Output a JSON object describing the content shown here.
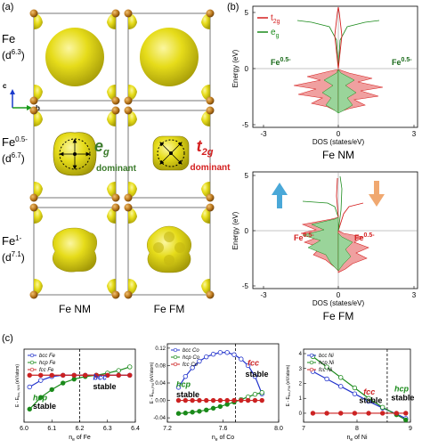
{
  "panel_labels": {
    "a": "(a)",
    "b": "(b)",
    "c": "(c)"
  },
  "panel_a": {
    "row1": {
      "name": "Fe",
      "config": "(d",
      "sup": "6.3",
      "close": ")"
    },
    "row2": {
      "name": "Fe",
      "name_sup": "0.5-",
      "config": "(d",
      "sup": "6.7",
      "close": ")"
    },
    "row3": {
      "name": "Fe",
      "name_sup": "1-",
      "config": "(d",
      "sup": "7.1",
      "close": ")"
    },
    "axis_c": "c",
    "axis_b": "b",
    "eg_label": "e",
    "eg_sub": "g",
    "eg_dominant": "dominant",
    "t2g_label": "t",
    "t2g_sub": "2g",
    "t2g_dominant": "dominant",
    "col1": "Fe NM",
    "col2": "Fe FM",
    "colors": {
      "iso": "#e6dc1a",
      "atom": "#b8751a",
      "eg": "#3a8a2a",
      "t2g": "#d42020"
    }
  },
  "panel_b": {
    "legend_t2g": "t",
    "legend_t2g_sub": "2g",
    "legend_eg": "e",
    "legend_eg_sub": "g",
    "nm": {
      "ylabel": "Energy (eV)",
      "yticks": [
        "5",
        "0",
        "-5"
      ],
      "xticks": [
        "-3",
        "0",
        "3"
      ],
      "xlabel": "DOS (states/eV)",
      "caption": "Fe NM",
      "left_label": "Fe",
      "left_label_sup": "0.5-",
      "right_label": "Fe",
      "right_label_sup": "0.5-"
    },
    "fm": {
      "ylabel": "Energy (eV)",
      "yticks": [
        "5",
        "0",
        "-5"
      ],
      "xticks": [
        "-3",
        "0",
        "3"
      ],
      "xlabel": "DOS (states/eV)",
      "caption": "Fe FM",
      "left_label": "Fe",
      "left_label_sup": "0.5-",
      "right_label": "Fe",
      "right_label_sup": "0.5-",
      "up_arrow_color": "#4aa8d8",
      "down_arrow_color": "#f0a870"
    }
  },
  "chart_data": [
    {
      "type": "line",
      "xlabel": "n",
      "xlabel_sub": "e",
      "xlabel_tail": " of Fe",
      "ylabel": "E - E",
      "ylabel_sub": "fcc, NM",
      "ylabel_tail": " (eV/atom)",
      "xlim": [
        6.0,
        6.4
      ],
      "ylim": [
        -0.18,
        0.1
      ],
      "xticks": [
        "6.0",
        "6.1",
        "6.2",
        "6.3",
        "6.4"
      ],
      "divider_x": 6.2,
      "series": [
        {
          "name": "bcc Fe",
          "color": "#2233cc",
          "x": [
            6.02,
            6.06,
            6.1,
            6.14,
            6.18,
            6.22,
            6.26,
            6.3,
            6.34,
            6.38
          ],
          "values": [
            -0.045,
            -0.02,
            -0.005,
            0.0,
            0.0,
            0.0,
            0.0,
            0.0,
            0.0,
            0.0
          ]
        },
        {
          "name": "hcp Fe",
          "color": "#1a8a1a",
          "x": [
            6.02,
            6.06,
            6.1,
            6.14,
            6.18,
            6.22,
            6.26,
            6.3,
            6.34,
            6.38
          ],
          "values": [
            -0.13,
            -0.085,
            -0.055,
            -0.03,
            -0.015,
            -0.005,
            0.0,
            0.008,
            0.018,
            0.032
          ]
        },
        {
          "name": "fcc Fe",
          "color": "#cc2222",
          "x": [
            6.02,
            6.06,
            6.1,
            6.14,
            6.18,
            6.22,
            6.26,
            6.3,
            6.34,
            6.38
          ],
          "values": [
            0,
            0,
            0,
            0,
            0,
            0,
            0,
            0,
            0,
            0
          ]
        }
      ],
      "annotations": [
        {
          "text": "hcp",
          "color": "#1a8a1a"
        },
        {
          "text": "stable",
          "color": "#000000"
        },
        {
          "text": "bcc",
          "color": "#2233cc"
        },
        {
          "text": "stable",
          "color": "#000000"
        }
      ]
    },
    {
      "type": "line",
      "xlabel": "n",
      "xlabel_sub": "e",
      "xlabel_tail": " of Co",
      "ylabel": "E - E",
      "ylabel_sub": "fcc,FM",
      "ylabel_tail": " (eV/atom)",
      "xlim": [
        7.2,
        8.0
      ],
      "ylim": [
        -0.05,
        0.13
      ],
      "xticks": [
        "7.2",
        "7.6",
        "8.0"
      ],
      "yticks": [
        "0.12",
        "0.08",
        "0.04",
        "0.00",
        "-0.04"
      ],
      "divider_x": 7.69,
      "series": [
        {
          "name": "bcc Co",
          "color": "#2233cc",
          "x": [
            7.28,
            7.33,
            7.38,
            7.43,
            7.48,
            7.53,
            7.58,
            7.63,
            7.68,
            7.73,
            7.78,
            7.83,
            7.88
          ],
          "values": [
            0.03,
            0.055,
            0.075,
            0.09,
            0.1,
            0.106,
            0.11,
            0.11,
            0.105,
            0.095,
            0.08,
            0.055,
            0.015
          ]
        },
        {
          "name": "hcp Co",
          "color": "#1a8a1a",
          "x": [
            7.28,
            7.33,
            7.38,
            7.43,
            7.48,
            7.53,
            7.58,
            7.63,
            7.68,
            7.73,
            7.78,
            7.83,
            7.88
          ],
          "values": [
            -0.03,
            -0.029,
            -0.027,
            -0.025,
            -0.022,
            -0.018,
            -0.014,
            -0.009,
            -0.004,
            0.002,
            0.008,
            0.014,
            0.018
          ]
        },
        {
          "name": "fcc Co",
          "color": "#cc2222",
          "x": [
            7.28,
            7.33,
            7.38,
            7.43,
            7.48,
            7.53,
            7.58,
            7.63,
            7.68,
            7.73,
            7.78,
            7.83,
            7.88
          ],
          "values": [
            0,
            0,
            0,
            0,
            0,
            0,
            0,
            0,
            0,
            0,
            0,
            0,
            0
          ]
        }
      ],
      "annotations": [
        {
          "text": "hcp",
          "color": "#1a8a1a"
        },
        {
          "text": "stable",
          "color": "#000000"
        },
        {
          "text": "fcc",
          "color": "#cc2222"
        },
        {
          "text": "stable",
          "color": "#000000"
        }
      ]
    },
    {
      "type": "line",
      "xlabel": "n",
      "xlabel_sub": "e",
      "xlabel_tail": " of Ni",
      "ylabel": "E - E",
      "ylabel_sub": "fcc,FM",
      "ylabel_tail": " (eV/atom)",
      "xlim": [
        6.7,
        9.0
      ],
      "ylim": [
        -0.6,
        4.3
      ],
      "xticks": [
        "7",
        "8",
        "9"
      ],
      "yticks": [
        "4",
        "3",
        "2",
        "1",
        "0"
      ],
      "divider_x": 8.5,
      "series": [
        {
          "name": "bcc Ni",
          "color": "#2233cc",
          "x": [
            6.9,
            7.2,
            7.5,
            7.8,
            8.1,
            8.4,
            8.7,
            8.9
          ],
          "values": [
            2.8,
            2.3,
            1.8,
            1.3,
            0.8,
            0.35,
            -0.05,
            -0.35
          ]
        },
        {
          "name": "hcp Ni",
          "color": "#1a8a1a",
          "x": [
            6.9,
            7.2,
            7.5,
            7.8,
            8.1,
            8.4,
            8.7,
            8.9
          ],
          "values": [
            3.8,
            3.1,
            2.4,
            1.7,
            1.0,
            0.4,
            -0.1,
            -0.45
          ]
        },
        {
          "name": "fcc Ni",
          "color": "#cc2222",
          "x": [
            6.9,
            7.2,
            7.5,
            7.8,
            8.1,
            8.4,
            8.7,
            8.9
          ],
          "values": [
            0,
            0,
            0,
            0,
            0,
            0,
            0,
            0
          ]
        }
      ],
      "annotations": [
        {
          "text": "fcc",
          "color": "#cc2222"
        },
        {
          "text": "stable",
          "color": "#000000"
        },
        {
          "text": "hcp",
          "color": "#1a8a1a"
        },
        {
          "text": "stable",
          "color": "#000000"
        }
      ]
    }
  ]
}
